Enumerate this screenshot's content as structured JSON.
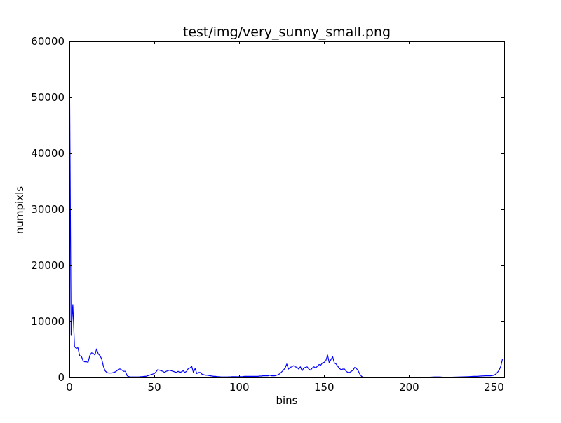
{
  "chart_data": {
    "type": "line",
    "title": "test/img/very_sunny_small.png",
    "xlabel": "bins",
    "ylabel": "numpixls",
    "xlim": [
      0,
      256
    ],
    "ylim": [
      0,
      60000
    ],
    "xticks": [
      0,
      50,
      100,
      150,
      200,
      250
    ],
    "yticks": [
      0,
      10000,
      20000,
      30000,
      40000,
      50000,
      60000
    ],
    "xtick_labels": [
      "0",
      "50",
      "100",
      "150",
      "200",
      "250"
    ],
    "ytick_labels": [
      "0",
      "10000",
      "20000",
      "30000",
      "40000",
      "50000",
      "60000"
    ],
    "grid": false,
    "line_color": "#0000ff",
    "series": [
      {
        "points": [
          [
            0,
            58000
          ],
          [
            1,
            7500
          ],
          [
            2,
            13000
          ],
          [
            3,
            5500
          ],
          [
            4,
            5200
          ],
          [
            5,
            5300
          ],
          [
            6,
            3900
          ],
          [
            7,
            3800
          ],
          [
            8,
            3000
          ],
          [
            9,
            2800
          ],
          [
            10,
            2800
          ],
          [
            11,
            2700
          ],
          [
            12,
            3900
          ],
          [
            13,
            4400
          ],
          [
            14,
            4300
          ],
          [
            15,
            4000
          ],
          [
            16,
            5100
          ],
          [
            17,
            4200
          ],
          [
            18,
            3900
          ],
          [
            19,
            3300
          ],
          [
            20,
            2000
          ],
          [
            21,
            1200
          ],
          [
            22,
            900
          ],
          [
            23,
            800
          ],
          [
            24,
            800
          ],
          [
            25,
            800
          ],
          [
            26,
            900
          ],
          [
            27,
            1000
          ],
          [
            28,
            1200
          ],
          [
            29,
            1500
          ],
          [
            30,
            1500
          ],
          [
            31,
            1300
          ],
          [
            32,
            1100
          ],
          [
            33,
            1100
          ],
          [
            34,
            300
          ],
          [
            35,
            150
          ],
          [
            36,
            100
          ],
          [
            37,
            100
          ],
          [
            38,
            100
          ],
          [
            39,
            100
          ],
          [
            40,
            100
          ],
          [
            41,
            100
          ],
          [
            42,
            150
          ],
          [
            43,
            150
          ],
          [
            44,
            200
          ],
          [
            45,
            200
          ],
          [
            46,
            300
          ],
          [
            47,
            400
          ],
          [
            48,
            500
          ],
          [
            49,
            600
          ],
          [
            50,
            700
          ],
          [
            51,
            1000
          ],
          [
            52,
            1400
          ],
          [
            53,
            1300
          ],
          [
            54,
            1200
          ],
          [
            55,
            1100
          ],
          [
            56,
            900
          ],
          [
            57,
            1100
          ],
          [
            58,
            1200
          ],
          [
            59,
            1300
          ],
          [
            60,
            1200
          ],
          [
            61,
            1100
          ],
          [
            62,
            1000
          ],
          [
            63,
            900
          ],
          [
            64,
            1100
          ],
          [
            65,
            900
          ],
          [
            66,
            1000
          ],
          [
            67,
            1200
          ],
          [
            68,
            900
          ],
          [
            69,
            1100
          ],
          [
            70,
            1600
          ],
          [
            71,
            1700
          ],
          [
            72,
            2000
          ],
          [
            73,
            900
          ],
          [
            74,
            1600
          ],
          [
            75,
            700
          ],
          [
            76,
            900
          ],
          [
            77,
            900
          ],
          [
            78,
            600
          ],
          [
            79,
            500
          ],
          [
            80,
            400
          ],
          [
            81,
            400
          ],
          [
            82,
            350
          ],
          [
            83,
            300
          ],
          [
            84,
            250
          ],
          [
            85,
            200
          ],
          [
            86,
            200
          ],
          [
            87,
            150
          ],
          [
            88,
            150
          ],
          [
            89,
            120
          ],
          [
            90,
            100
          ],
          [
            91,
            100
          ],
          [
            92,
            100
          ],
          [
            93,
            100
          ],
          [
            94,
            120
          ],
          [
            95,
            130
          ],
          [
            96,
            150
          ],
          [
            97,
            150
          ],
          [
            98,
            150
          ],
          [
            99,
            130
          ],
          [
            100,
            150
          ],
          [
            101,
            150
          ],
          [
            102,
            150
          ],
          [
            103,
            200
          ],
          [
            104,
            200
          ],
          [
            105,
            200
          ],
          [
            106,
            200
          ],
          [
            107,
            200
          ],
          [
            108,
            200
          ],
          [
            109,
            200
          ],
          [
            110,
            200
          ],
          [
            111,
            200
          ],
          [
            112,
            250
          ],
          [
            113,
            250
          ],
          [
            114,
            300
          ],
          [
            115,
            300
          ],
          [
            116,
            300
          ],
          [
            117,
            300
          ],
          [
            118,
            400
          ],
          [
            119,
            300
          ],
          [
            120,
            300
          ],
          [
            121,
            300
          ],
          [
            122,
            400
          ],
          [
            123,
            500
          ],
          [
            124,
            700
          ],
          [
            125,
            1000
          ],
          [
            126,
            1300
          ],
          [
            127,
            1700
          ],
          [
            128,
            2400
          ],
          [
            129,
            1500
          ],
          [
            130,
            1800
          ],
          [
            131,
            1900
          ],
          [
            132,
            2100
          ],
          [
            133,
            1900
          ],
          [
            134,
            1800
          ],
          [
            135,
            1500
          ],
          [
            136,
            1900
          ],
          [
            137,
            1200
          ],
          [
            138,
            1700
          ],
          [
            139,
            1800
          ],
          [
            140,
            1900
          ],
          [
            141,
            1500
          ],
          [
            142,
            1300
          ],
          [
            143,
            1700
          ],
          [
            144,
            1900
          ],
          [
            145,
            1700
          ],
          [
            146,
            2000
          ],
          [
            147,
            2300
          ],
          [
            148,
            2200
          ],
          [
            149,
            2600
          ],
          [
            150,
            2700
          ],
          [
            151,
            3000
          ],
          [
            152,
            4000
          ],
          [
            153,
            2600
          ],
          [
            154,
            3200
          ],
          [
            155,
            3700
          ],
          [
            156,
            2600
          ],
          [
            157,
            2400
          ],
          [
            158,
            2000
          ],
          [
            159,
            1600
          ],
          [
            160,
            1400
          ],
          [
            161,
            1500
          ],
          [
            162,
            1500
          ],
          [
            163,
            1100
          ],
          [
            164,
            900
          ],
          [
            165,
            900
          ],
          [
            166,
            1100
          ],
          [
            167,
            1300
          ],
          [
            168,
            1800
          ],
          [
            169,
            1600
          ],
          [
            170,
            1200
          ],
          [
            171,
            600
          ],
          [
            172,
            200
          ],
          [
            173,
            50
          ],
          [
            174,
            0
          ],
          [
            175,
            0
          ],
          [
            180,
            0
          ],
          [
            190,
            0
          ],
          [
            200,
            0
          ],
          [
            210,
            0
          ],
          [
            212,
            50
          ],
          [
            215,
            100
          ],
          [
            218,
            100
          ],
          [
            220,
            50
          ],
          [
            225,
            50
          ],
          [
            230,
            100
          ],
          [
            235,
            150
          ],
          [
            238,
            200
          ],
          [
            240,
            200
          ],
          [
            242,
            250
          ],
          [
            245,
            300
          ],
          [
            248,
            300
          ],
          [
            250,
            400
          ],
          [
            251,
            600
          ],
          [
            252,
            900
          ],
          [
            253,
            1300
          ],
          [
            254,
            2000
          ],
          [
            255,
            3300
          ]
        ]
      }
    ]
  }
}
